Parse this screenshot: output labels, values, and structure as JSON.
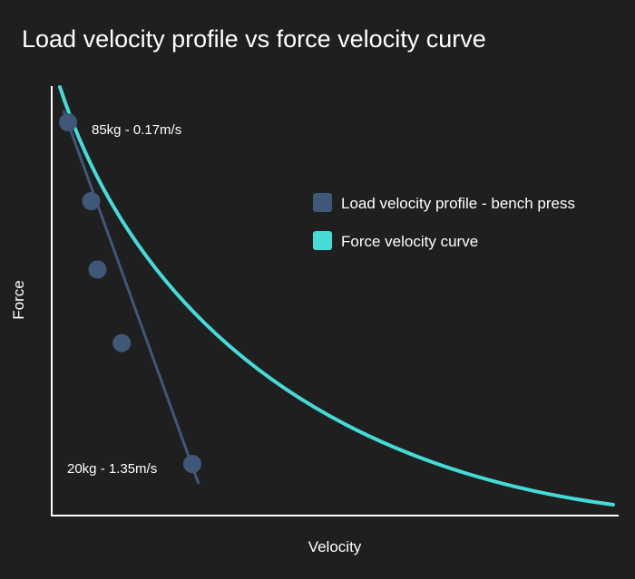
{
  "chart_data": {
    "type": "line",
    "title": "Load velocity profile vs force velocity curve",
    "xlabel": "Velocity",
    "ylabel": "Force",
    "grid": false,
    "legend_position": "right",
    "series": [
      {
        "name": "Load velocity profile - bench press",
        "kind": "scatter-with-fit-line",
        "color": "#3f5878",
        "points": [
          {
            "x": 0.17,
            "y": 85
          },
          {
            "x": 0.39,
            "y": 70
          },
          {
            "x": 0.45,
            "y": 57
          },
          {
            "x": 0.68,
            "y": 43
          },
          {
            "x": 1.35,
            "y": 20
          }
        ]
      },
      {
        "name": "Force velocity curve",
        "kind": "curve",
        "color": "#45dcd8"
      }
    ],
    "annotations": [
      {
        "text": "85kg - 0.17m/s"
      },
      {
        "text": "20kg - 1.35m/s"
      }
    ]
  }
}
